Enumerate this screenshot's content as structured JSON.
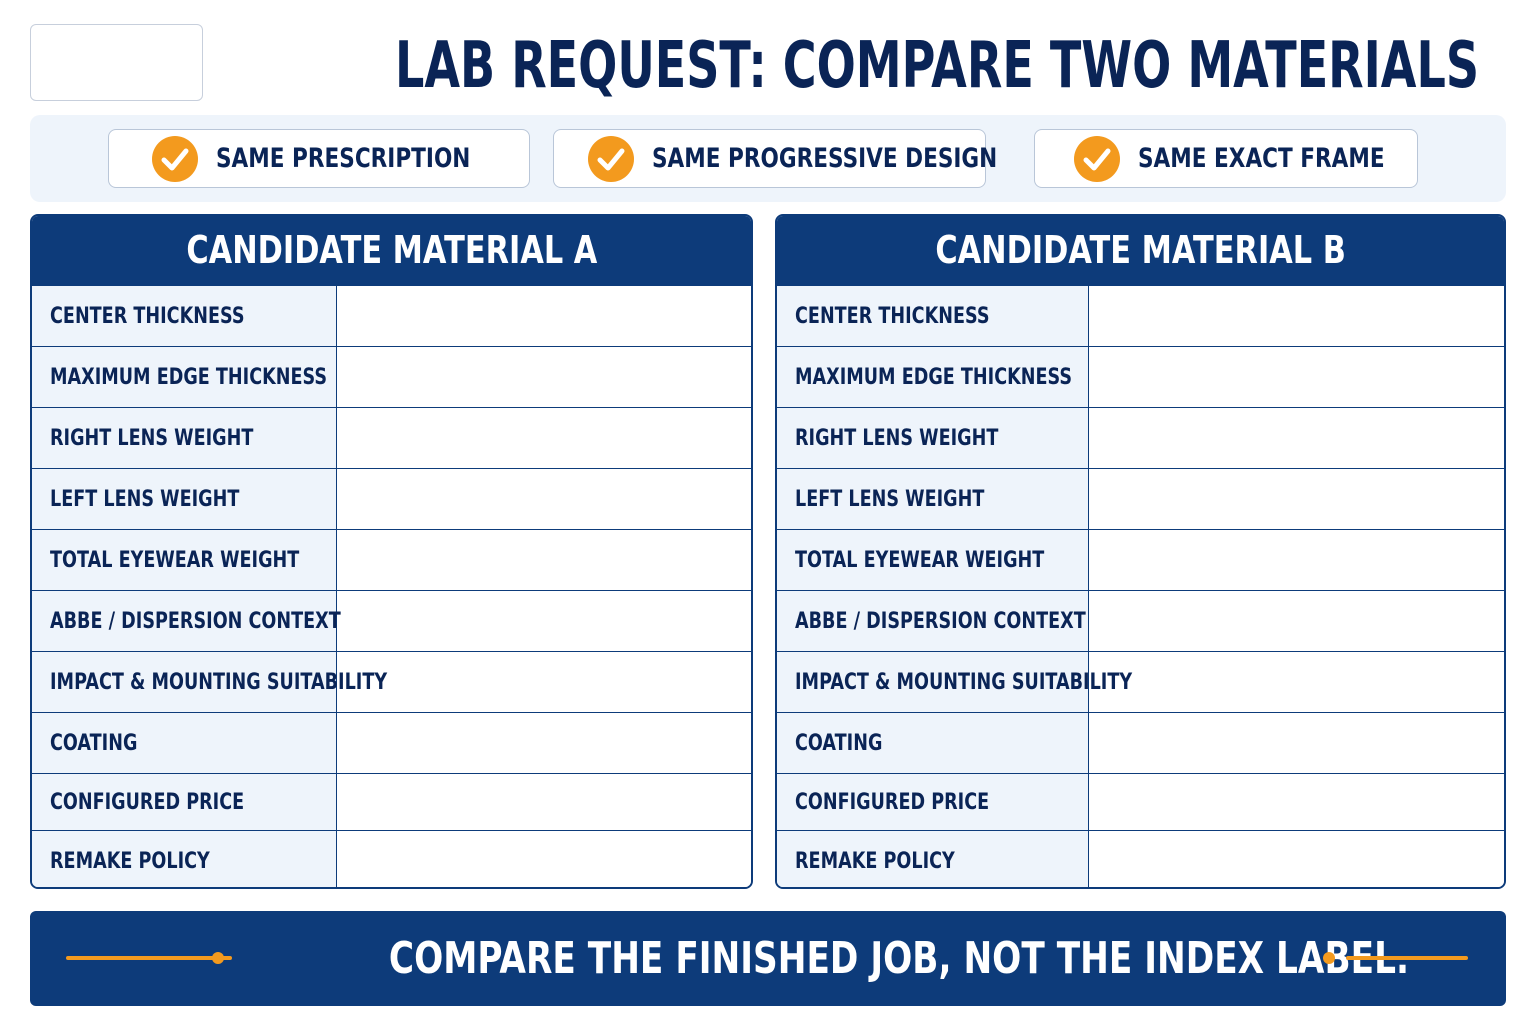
{
  "header": {
    "title": "LAB REQUEST: COMPARE TWO MATERIALS"
  },
  "checks": [
    {
      "label": "SAME PRESCRIPTION",
      "icon": "check-circle-icon"
    },
    {
      "label": "SAME PROGRESSIVE DESIGN",
      "icon": "check-circle-icon"
    },
    {
      "label": "SAME EXACT FRAME",
      "icon": "check-circle-icon"
    }
  ],
  "panels": [
    {
      "title": "CANDIDATE MATERIAL A",
      "rows": [
        {
          "label": "CENTER THICKNESS",
          "value": ""
        },
        {
          "label": "MAXIMUM EDGE THICKNESS",
          "value": ""
        },
        {
          "label": "RIGHT LENS WEIGHT",
          "value": ""
        },
        {
          "label": "LEFT LENS WEIGHT",
          "value": ""
        },
        {
          "label": "TOTAL EYEWEAR WEIGHT",
          "value": ""
        },
        {
          "label": "ABBE / DISPERSION CONTEXT",
          "value": ""
        },
        {
          "label": "IMPACT & MOUNTING SUITABILITY",
          "value": ""
        },
        {
          "label": "COATING",
          "value": ""
        },
        {
          "label": "CONFIGURED PRICE",
          "value": ""
        },
        {
          "label": "REMAKE POLICY",
          "value": ""
        }
      ]
    },
    {
      "title": "CANDIDATE MATERIAL B",
      "rows": [
        {
          "label": "CENTER THICKNESS",
          "value": ""
        },
        {
          "label": "MAXIMUM EDGE THICKNESS",
          "value": ""
        },
        {
          "label": "RIGHT LENS WEIGHT",
          "value": ""
        },
        {
          "label": "LEFT LENS WEIGHT",
          "value": ""
        },
        {
          "label": "TOTAL EYEWEAR WEIGHT",
          "value": ""
        },
        {
          "label": "ABBE / DISPERSION CONTEXT",
          "value": ""
        },
        {
          "label": "IMPACT & MOUNTING SUITABILITY",
          "value": ""
        },
        {
          "label": "COATING",
          "value": ""
        },
        {
          "label": "CONFIGURED PRICE",
          "value": ""
        },
        {
          "label": "REMAKE POLICY",
          "value": ""
        }
      ]
    }
  ],
  "footer": {
    "text": "COMPARE THE FINISHED JOB, NOT THE INDEX LABEL."
  },
  "colors": {
    "navy": "#0d3b7a",
    "title_navy": "#0a2456",
    "accent_orange": "#f39a1e",
    "label_bg": "#eef4fb"
  }
}
